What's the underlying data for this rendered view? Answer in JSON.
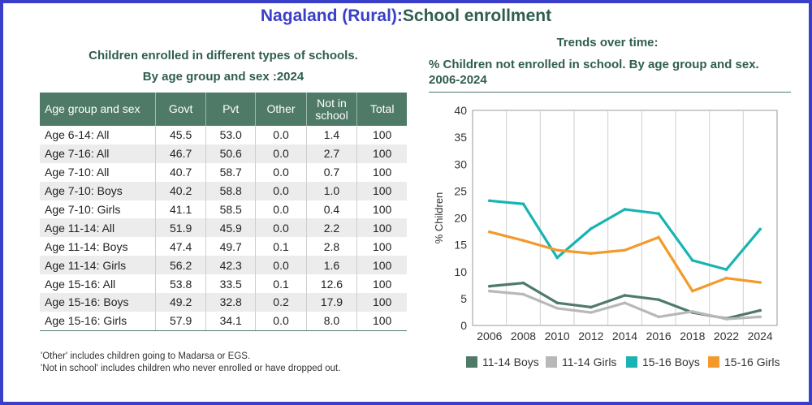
{
  "title": {
    "part1": "Nagaland (Rural):",
    "part2": "School enrollment"
  },
  "left": {
    "subtitle1": "Children enrolled in different types of schools.",
    "subtitle2": "By age group and sex :2024",
    "headers": [
      "Age group and sex",
      "Govt",
      "Pvt",
      "Other",
      "Not in school",
      "Total"
    ],
    "rows": [
      [
        "Age 6-14: All",
        "45.5",
        "53.0",
        "0.0",
        "1.4",
        "100"
      ],
      [
        "Age 7-16: All",
        "46.7",
        "50.6",
        "0.0",
        "2.7",
        "100"
      ],
      [
        "Age 7-10: All",
        "40.7",
        "58.7",
        "0.0",
        "0.7",
        "100"
      ],
      [
        "Age 7-10: Boys",
        "40.2",
        "58.8",
        "0.0",
        "1.0",
        "100"
      ],
      [
        "Age 7-10: Girls",
        "41.1",
        "58.5",
        "0.0",
        "0.4",
        "100"
      ],
      [
        "Age 11-14: All",
        "51.9",
        "45.9",
        "0.0",
        "2.2",
        "100"
      ],
      [
        "Age 11-14: Boys",
        "47.4",
        "49.7",
        "0.1",
        "2.8",
        "100"
      ],
      [
        "Age 11-14: Girls",
        "56.2",
        "42.3",
        "0.0",
        "1.6",
        "100"
      ],
      [
        "Age 15-16: All",
        "53.8",
        "33.5",
        "0.1",
        "12.6",
        "100"
      ],
      [
        "Age 15-16: Boys",
        "49.2",
        "32.8",
        "0.2",
        "17.9",
        "100"
      ],
      [
        "Age 15-16: Girls",
        "57.9",
        "34.1",
        "0.0",
        "8.0",
        "100"
      ]
    ],
    "note1": "'Other' includes children going to Madarsa or EGS.",
    "note2": "'Not in school' includes children who never enrolled or have dropped out."
  },
  "right": {
    "title": "Trends over time:",
    "subtitle1": "% Children not enrolled in school. By age group and sex.",
    "subtitle2": "2006-2024"
  },
  "chart_data": {
    "type": "line",
    "title": "% Children not enrolled in school. By age group and sex. 2006-2024",
    "xlabel": "",
    "ylabel": "% Children",
    "x": [
      "2006",
      "2008",
      "2010",
      "2012",
      "2014",
      "2016",
      "2018",
      "2022",
      "2024"
    ],
    "ylim": [
      0,
      40
    ],
    "yticks": [
      "0",
      "5",
      "10",
      "15",
      "20",
      "25",
      "30",
      "35",
      "40"
    ],
    "grid": "vertical",
    "legend": "bottom",
    "series": [
      {
        "name": "11-14 Boys",
        "color": "#4e7a67",
        "values": [
          7.3,
          7.9,
          4.2,
          3.4,
          5.6,
          4.8,
          2.4,
          1.3,
          2.8
        ]
      },
      {
        "name": "11-14 Girls",
        "color": "#b8b8b8",
        "values": [
          6.4,
          5.8,
          3.2,
          2.4,
          4.2,
          1.6,
          2.6,
          1.2,
          1.6
        ]
      },
      {
        "name": "15-16 Boys",
        "color": "#1ab3b3",
        "values": [
          23.2,
          22.6,
          12.6,
          18.0,
          21.6,
          20.8,
          12.1,
          10.4,
          17.9
        ]
      },
      {
        "name": "15-16 Girls",
        "color": "#f39a2b",
        "values": [
          17.4,
          15.8,
          14.0,
          13.4,
          14.0,
          16.4,
          6.4,
          8.8,
          8.0
        ]
      }
    ]
  }
}
